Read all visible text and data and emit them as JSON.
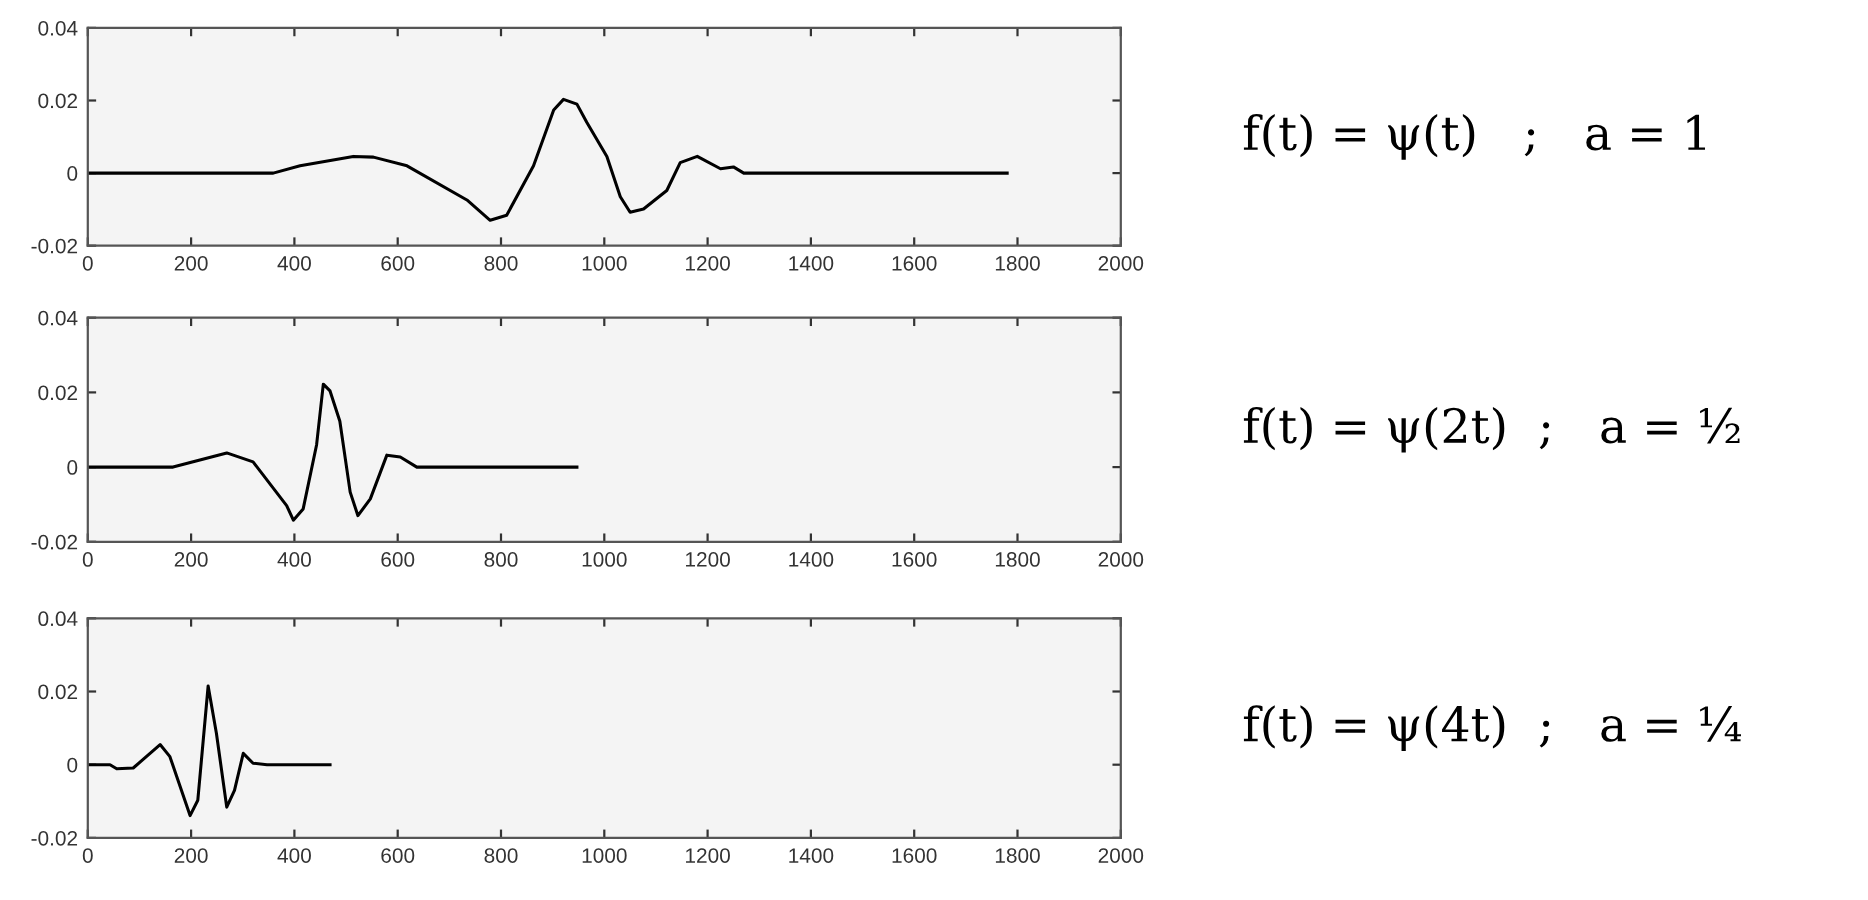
{
  "chart_data": [
    {
      "type": "line",
      "xlim": [
        0,
        2000
      ],
      "xticks": [
        0,
        200,
        400,
        600,
        800,
        1000,
        1200,
        1400,
        1600,
        1800,
        2000
      ],
      "ylim": [
        -0.02,
        0.04
      ],
      "yticks": [
        -0.02,
        0,
        0.02,
        0.04
      ],
      "grid": false,
      "marker": "none",
      "line_style": "solid",
      "annotations": [
        "f(t) = ψ(t)   ;   a = 1"
      ],
      "series": [
        {
          "color": "#000000",
          "x": [
            0,
            359,
            411,
            514,
            553,
            618,
            734,
            779,
            811,
            863,
            902,
            921,
            947,
            966,
            1005,
            1031,
            1050,
            1076,
            1121,
            1147,
            1180,
            1225,
            1250,
            1270,
            1780
          ],
          "values": [
            0,
            0,
            0.002,
            0.0046,
            0.0044,
            0.002,
            -0.0074,
            -0.013,
            -0.0116,
            0.002,
            0.0174,
            0.0203,
            0.019,
            0.014,
            0.0046,
            -0.0065,
            -0.0108,
            -0.0099,
            -0.0048,
            0.0029,
            0.0046,
            0.0012,
            0.0017,
            0,
            0
          ]
        }
      ]
    },
    {
      "type": "line",
      "xlim": [
        0,
        2000
      ],
      "xticks": [
        0,
        200,
        400,
        600,
        800,
        1000,
        1200,
        1400,
        1600,
        1800,
        2000
      ],
      "ylim": [
        -0.02,
        0.04
      ],
      "yticks": [
        -0.02,
        0,
        0.02,
        0.04
      ],
      "grid": false,
      "marker": "none",
      "line_style": "solid",
      "annotations": [
        "f(t) = ψ(2t)  ;   a = ½"
      ],
      "series": [
        {
          "color": "#000000",
          "x": [
            0,
            165,
            269,
            320,
            385,
            398,
            417,
            443,
            456,
            469,
            488,
            508,
            523,
            547,
            579,
            605,
            637,
            947
          ],
          "values": [
            0,
            0,
            0.0038,
            0.0014,
            -0.0103,
            -0.0142,
            -0.0112,
            0.006,
            0.0222,
            0.0204,
            0.0123,
            -0.0067,
            -0.013,
            -0.0085,
            0.0032,
            0.0027,
            0,
            0
          ]
        }
      ]
    },
    {
      "type": "line",
      "xlim": [
        0,
        2000
      ],
      "xticks": [
        0,
        200,
        400,
        600,
        800,
        1000,
        1200,
        1400,
        1600,
        1800,
        2000
      ],
      "ylim": [
        -0.02,
        0.04
      ],
      "yticks": [
        -0.02,
        0,
        0.02,
        0.04
      ],
      "grid": false,
      "marker": "none",
      "line_style": "solid",
      "annotations": [
        "f(t) = ψ(4t)  ;   a = ¼"
      ],
      "series": [
        {
          "color": "#000000",
          "x": [
            0,
            43,
            56,
            88,
            140,
            159,
            198,
            213,
            233,
            249,
            269,
            284,
            301,
            320,
            347,
            469
          ],
          "values": [
            0,
            0,
            -0.0011,
            -0.0009,
            0.0055,
            0.0022,
            -0.0139,
            -0.0097,
            0.0215,
            0.0086,
            -0.0116,
            -0.007,
            0.0031,
            0.0004,
            0,
            0
          ]
        }
      ]
    }
  ]
}
